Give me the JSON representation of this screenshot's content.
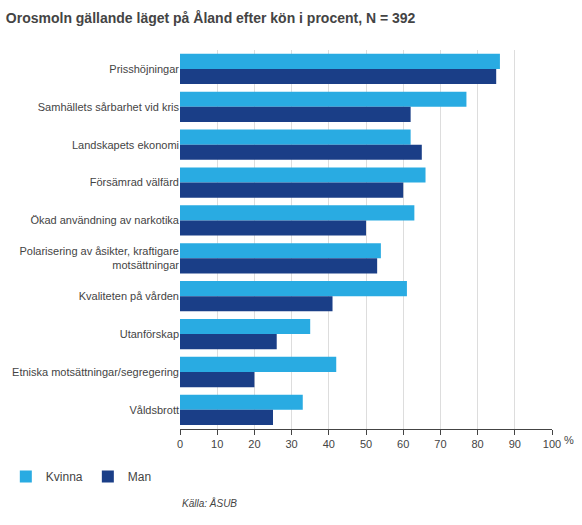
{
  "chart_data": {
    "type": "bar",
    "orientation": "horizontal",
    "title": "Orosmoln gällande läget på Åland efter kön i procent, N = 392",
    "categories": [
      "Prisshöjningar",
      "Samhällets sårbarhet vid kris",
      "Landskapets ekonomi",
      "Försämrad välfärd",
      "Ökad användning av narkotika",
      "Polarisering av åsikter, kraftigare\nmotsättningar",
      "Kvaliteten på vården",
      "Utanförskap",
      "Etniska motsättningar/segregering",
      "Våldsbrott"
    ],
    "series": [
      {
        "name": "Kvinna",
        "color": "#29ABE2",
        "values": [
          86,
          77,
          62,
          66,
          63,
          54,
          61,
          35,
          42,
          33
        ]
      },
      {
        "name": "Man",
        "color": "#1A3E87",
        "values": [
          85,
          62,
          65,
          60,
          50,
          53,
          41,
          26,
          20,
          25
        ]
      }
    ],
    "xlim": [
      0,
      100
    ],
    "xticks": [
      0,
      10,
      20,
      30,
      40,
      50,
      60,
      70,
      80,
      90,
      100
    ],
    "grid": true,
    "legend": "lower left",
    "annotations": [
      "%",
      "Källa: ÅSUB"
    ]
  }
}
